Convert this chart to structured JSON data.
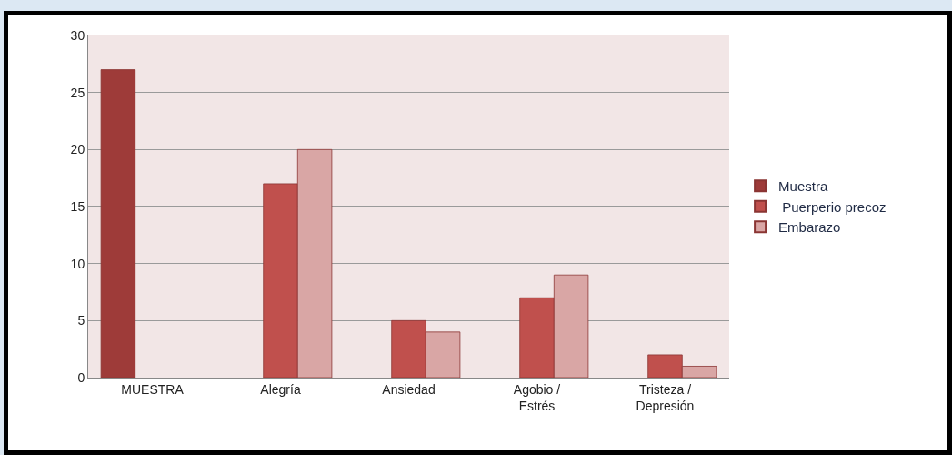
{
  "chart_data": {
    "type": "bar",
    "categories": [
      "MUESTRA",
      "Alegría",
      "Ansiedad",
      "Agobio /\nEstrés",
      "Tristeza /\nDepresión"
    ],
    "series": [
      {
        "name": "Muestra",
        "color": "#9e3b39",
        "values": [
          27,
          null,
          null,
          null,
          null
        ]
      },
      {
        "name": " Puerperio precoz",
        "color": "#c0504d",
        "values": [
          null,
          17,
          5,
          7,
          2
        ]
      },
      {
        "name": "Embarazo",
        "color": "#d9a6a5",
        "values": [
          null,
          20,
          4,
          9,
          1
        ]
      }
    ],
    "ylim": [
      0,
      30
    ],
    "yticks": [
      0,
      5,
      10,
      15,
      20,
      25,
      30
    ],
    "grid": "y",
    "legend": "right"
  }
}
